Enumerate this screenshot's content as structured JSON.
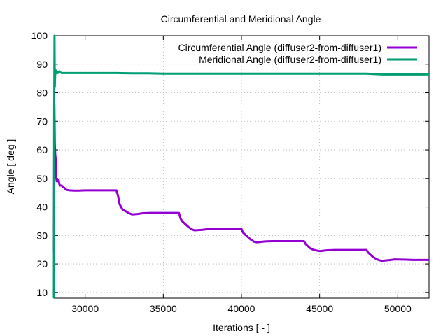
{
  "chart_data": {
    "type": "line",
    "title": "Circumferential and Meridional Angle",
    "xlabel": "Iterations [ - ]",
    "ylabel": "Angle [ deg ]",
    "xlim": [
      28000,
      52000
    ],
    "ylim": [
      8,
      100
    ],
    "xticks": [
      30000,
      35000,
      40000,
      45000,
      50000
    ],
    "yticks": [
      10,
      20,
      30,
      40,
      50,
      60,
      70,
      80,
      90,
      100
    ],
    "grid": true,
    "legend_position": "top-right",
    "series": [
      {
        "name": "Circumferential Angle (diffuser2-from-diffuser1)",
        "color": "#9400d3",
        "x": [
          28000,
          28030,
          28060,
          28090,
          28120,
          28150,
          28180,
          28220,
          28260,
          28300,
          28350,
          28400,
          28450,
          28500,
          28600,
          28700,
          28800,
          29000,
          29300,
          29600,
          30000,
          31000,
          32000,
          32100,
          32200,
          32400,
          32600,
          32800,
          33000,
          33300,
          33700,
          34200,
          35000,
          36000,
          36100,
          36200,
          36400,
          36600,
          36800,
          37000,
          37500,
          38000,
          39000,
          40000,
          40100,
          40200,
          40400,
          40600,
          40800,
          41000,
          41500,
          42000,
          43000,
          44000,
          44100,
          44200,
          44400,
          44600,
          44800,
          45000,
          45500,
          46000,
          47000,
          48000,
          48100,
          48200,
          48400,
          48600,
          48800,
          49000,
          49400,
          49800,
          50500,
          51000,
          52000
        ],
        "y": [
          24,
          76,
          62,
          58,
          57,
          51,
          49,
          49,
          49.5,
          49.5,
          48,
          47.5,
          47.5,
          47.5,
          47,
          46.5,
          46,
          45.8,
          45.7,
          45.7,
          45.8,
          45.8,
          45.8,
          44,
          41,
          39,
          38.5,
          37.8,
          37.4,
          37.5,
          37.8,
          37.9,
          37.9,
          37.9,
          36,
          35,
          34,
          33,
          32.2,
          31.8,
          32,
          32.3,
          32.3,
          32.3,
          31,
          30.5,
          29.5,
          28.5,
          27.8,
          27.6,
          27.9,
          28,
          28,
          28,
          27,
          26.5,
          25.5,
          25,
          24.7,
          24.5,
          24.8,
          24.9,
          24.9,
          24.9,
          24,
          23.5,
          22.5,
          21.8,
          21.3,
          21.1,
          21.3,
          21.6,
          21.5,
          21.4,
          21.4
        ]
      },
      {
        "name": "Meridional Angle (diffuser2-from-diffuser1)",
        "color": "#009e73",
        "x": [
          28000,
          28020,
          28040,
          28060,
          28080,
          28100,
          28120,
          28140,
          28170,
          28200,
          28240,
          28280,
          28320,
          28360,
          28400,
          28500,
          28700,
          29000,
          30000,
          31000,
          32000,
          33000,
          34000,
          35000,
          36000,
          37000,
          38000,
          40000,
          42000,
          44000,
          46000,
          48000,
          49000,
          50000,
          52000
        ],
        "y": [
          8,
          70,
          100,
          82,
          86,
          88,
          87,
          87.6,
          87.2,
          86.8,
          87.4,
          87,
          87.3,
          87.5,
          87.2,
          86.9,
          86.9,
          86.9,
          86.9,
          86.9,
          86.9,
          86.8,
          86.8,
          86.7,
          86.7,
          86.7,
          86.7,
          86.7,
          86.7,
          86.7,
          86.7,
          86.7,
          86.4,
          86.4,
          86.4
        ]
      }
    ]
  }
}
